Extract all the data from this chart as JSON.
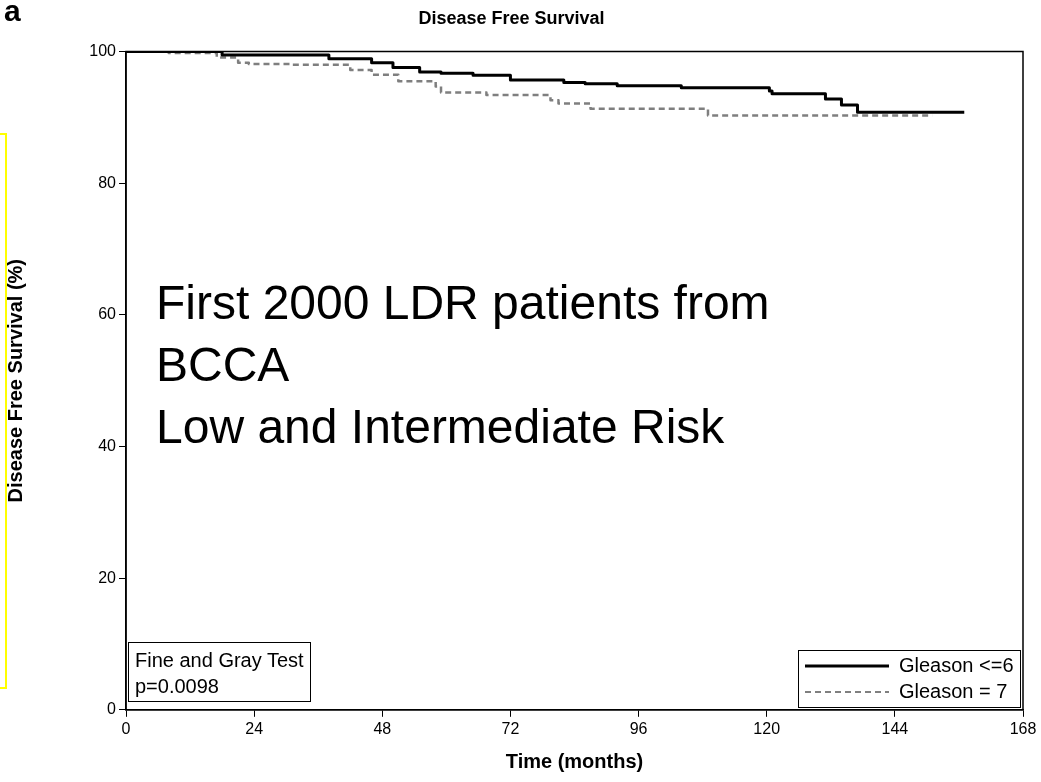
{
  "chart_data": {
    "type": "step",
    "title": "Disease Free Survival",
    "xlabel": "Time (months)",
    "ylabel": "Disease Free Survival (%)",
    "xlim": [
      0,
      168
    ],
    "xticks": [
      0,
      24,
      48,
      72,
      96,
      120,
      144,
      168
    ],
    "ylim": [
      0,
      100
    ],
    "yticks": [
      0,
      20,
      40,
      60,
      80,
      100
    ],
    "grid": false,
    "legend": "bottom right",
    "marker": "none",
    "series": [
      {
        "name": "Gleason <=6",
        "color": "#000000",
        "line_style": "solid",
        "x": [
          0,
          18,
          38,
          46,
          50,
          55,
          59,
          65,
          72,
          82,
          86,
          92,
          104,
          120.5,
          121,
          131,
          134,
          137,
          157
        ],
        "values": [
          100,
          99.5,
          98.9,
          98.3,
          97.6,
          96.9,
          96.7,
          96.4,
          95.7,
          95.3,
          95.1,
          94.8,
          94.5,
          94.0,
          93.6,
          92.8,
          91.9,
          90.8,
          90.8
        ]
      },
      {
        "name": "Gleason = 7",
        "color": "#7f7f7f",
        "line_style": "dashed",
        "x": [
          0,
          8,
          17,
          21,
          23,
          31,
          42,
          46,
          51,
          58,
          59,
          67.5,
          79.5,
          81,
          87,
          109,
          151
        ],
        "values": [
          100,
          99.8,
          99.1,
          98.3,
          98.1,
          98.0,
          97.2,
          96.5,
          95.5,
          94.7,
          93.8,
          93.4,
          92.6,
          92.1,
          91.3,
          90.3,
          90.3
        ]
      }
    ],
    "annotations": [
      "a",
      "First 2000 LDR patients from\nBCCA\nLow and Intermediate Risk",
      "Fine and Gray Test\np=0.0098"
    ]
  }
}
